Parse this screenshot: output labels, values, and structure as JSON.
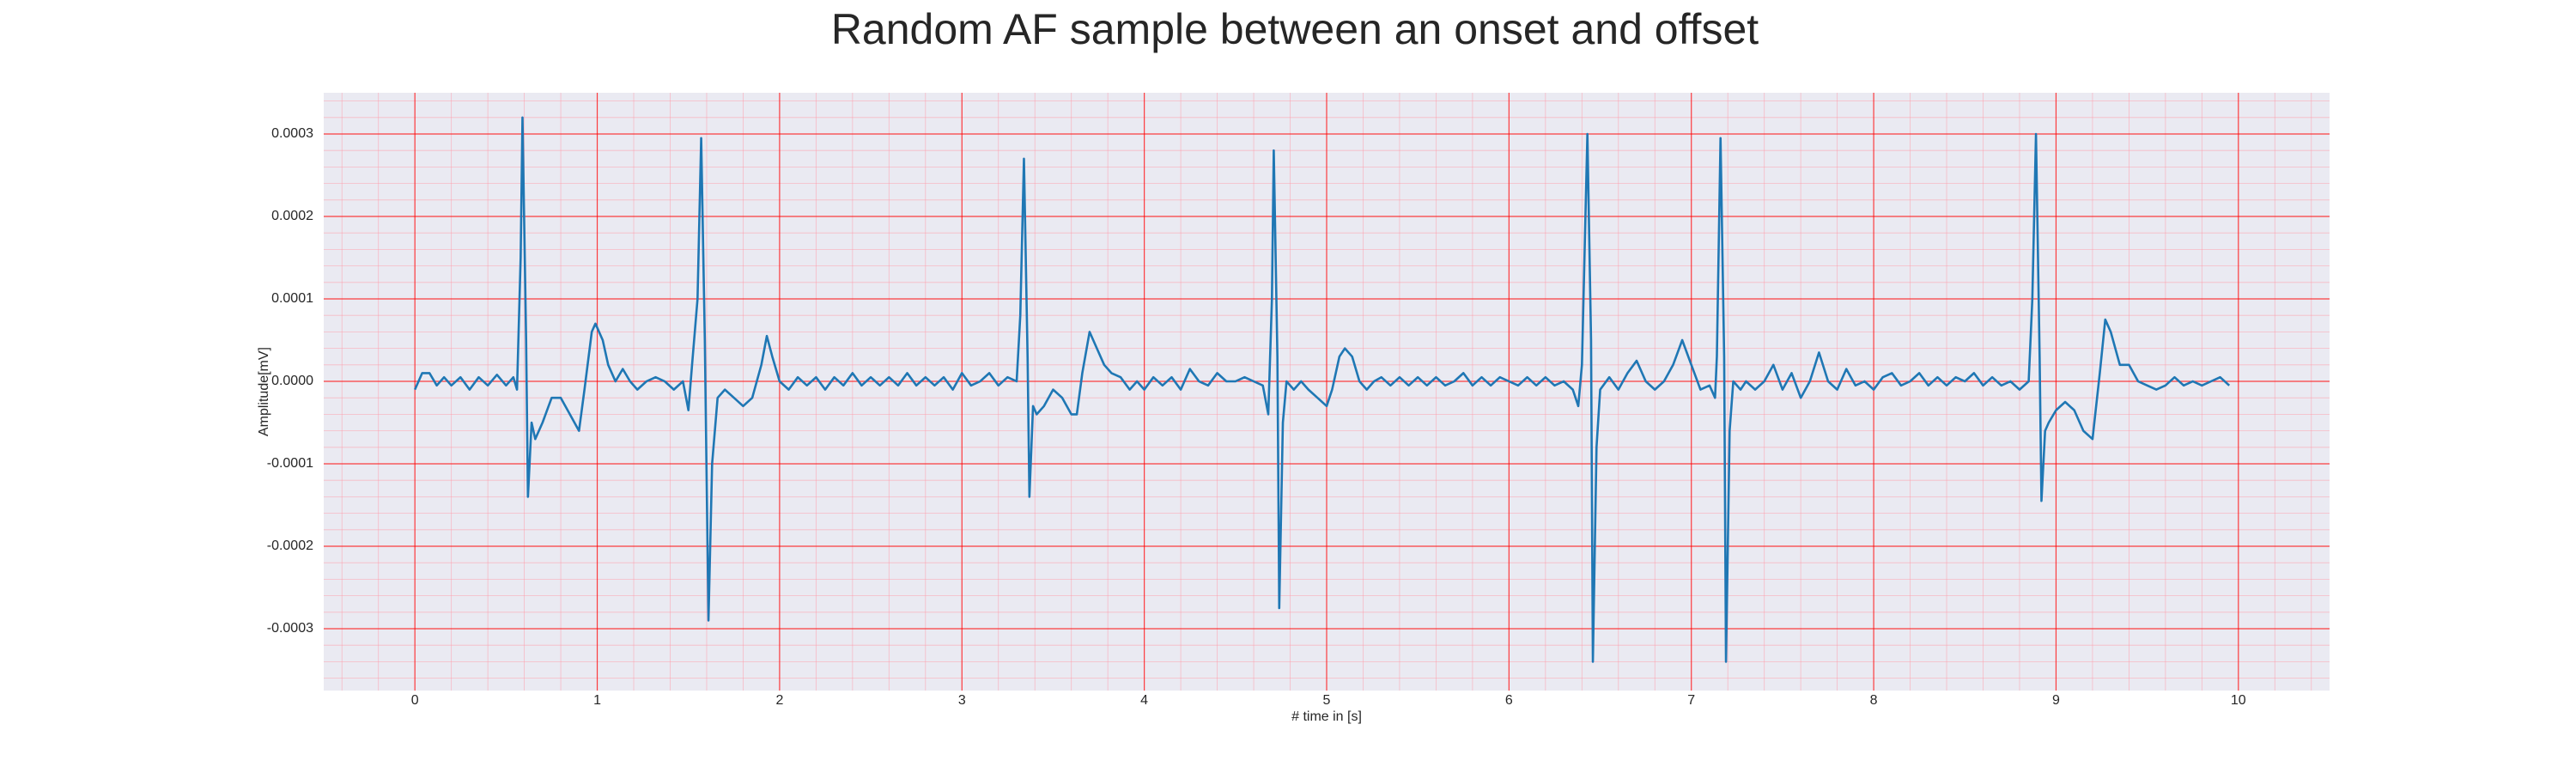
{
  "chart_data": {
    "type": "line",
    "title": "Random AF sample between an onset and offset",
    "xlabel": "# time in [s]",
    "ylabel": "Amplitude[mV]",
    "color": "#1f77b4",
    "grid": true,
    "minor_grid": true,
    "xlim": [
      -0.5,
      10.5
    ],
    "ylim": [
      -0.000375,
      0.00035
    ],
    "xticks": [
      0,
      1,
      2,
      3,
      4,
      5,
      6,
      7,
      8,
      9,
      10
    ],
    "yticks": [
      -0.0003,
      -0.0002,
      -0.0001,
      {
        "value": 0,
        "label": "0.0000"
      },
      0.0001,
      0.0002,
      0.0003
    ],
    "x": [
      0,
      0.04,
      0.08,
      0.12,
      0.16,
      0.2,
      0.25,
      0.3,
      0.35,
      0.4,
      0.45,
      0.5,
      0.54,
      0.56,
      0.58,
      0.59,
      0.61,
      0.62,
      0.64,
      0.66,
      0.7,
      0.75,
      0.8,
      0.85,
      0.9,
      0.93,
      0.97,
      0.99,
      1.03,
      1.06,
      1.1,
      1.14,
      1.18,
      1.22,
      1.27,
      1.32,
      1.37,
      1.42,
      1.47,
      1.5,
      1.52,
      1.55,
      1.57,
      1.59,
      1.61,
      1.63,
      1.66,
      1.7,
      1.75,
      1.8,
      1.85,
      1.9,
      1.93,
      1.96,
      2.0,
      2.05,
      2.1,
      2.15,
      2.2,
      2.25,
      2.3,
      2.35,
      2.4,
      2.45,
      2.5,
      2.55,
      2.6,
      2.65,
      2.7,
      2.75,
      2.8,
      2.85,
      2.9,
      2.95,
      3.0,
      3.05,
      3.1,
      3.15,
      3.2,
      3.25,
      3.3,
      3.32,
      3.34,
      3.36,
      3.37,
      3.39,
      3.41,
      3.45,
      3.5,
      3.55,
      3.6,
      3.63,
      3.66,
      3.7,
      3.74,
      3.78,
      3.82,
      3.87,
      3.92,
      3.96,
      4.0,
      4.05,
      4.1,
      4.15,
      4.2,
      4.25,
      4.3,
      4.35,
      4.4,
      4.45,
      4.5,
      4.55,
      4.6,
      4.65,
      4.68,
      4.7,
      4.71,
      4.73,
      4.74,
      4.76,
      4.78,
      4.82,
      4.86,
      4.9,
      4.95,
      5.0,
      5.03,
      5.07,
      5.1,
      5.14,
      5.18,
      5.22,
      5.26,
      5.3,
      5.35,
      5.4,
      5.45,
      5.5,
      5.55,
      5.6,
      5.65,
      5.7,
      5.75,
      5.8,
      5.85,
      5.9,
      5.95,
      6.0,
      6.05,
      6.1,
      6.15,
      6.2,
      6.25,
      6.3,
      6.35,
      6.38,
      6.4,
      6.43,
      6.45,
      6.46,
      6.48,
      6.5,
      6.55,
      6.6,
      6.65,
      6.7,
      6.75,
      6.8,
      6.85,
      6.9,
      6.95,
      7.0,
      7.05,
      7.1,
      7.13,
      7.14,
      7.16,
      7.18,
      7.19,
      7.21,
      7.23,
      7.27,
      7.3,
      7.35,
      7.4,
      7.45,
      7.5,
      7.55,
      7.6,
      7.65,
      7.7,
      7.75,
      7.8,
      7.85,
      7.9,
      7.95,
      8.0,
      8.05,
      8.1,
      8.15,
      8.2,
      8.25,
      8.3,
      8.35,
      8.4,
      8.45,
      8.5,
      8.55,
      8.6,
      8.65,
      8.7,
      8.75,
      8.8,
      8.85,
      8.87,
      8.89,
      8.91,
      8.92,
      8.94,
      8.96,
      9.0,
      9.05,
      9.1,
      9.15,
      9.2,
      9.24,
      9.27,
      9.3,
      9.35,
      9.4,
      9.45,
      9.5,
      9.55,
      9.6,
      9.65,
      9.7,
      9.75,
      9.8,
      9.85,
      9.9,
      9.95
    ],
    "values": [
      -1e-05,
      1e-05,
      1e-05,
      -5e-06,
      5e-06,
      -5e-06,
      5e-06,
      -1e-05,
      5e-06,
      -5e-06,
      8e-06,
      -5e-06,
      5e-06,
      -1e-05,
      0.00015,
      0.00032,
      5e-05,
      -0.00014,
      -5e-05,
      -7e-05,
      -5e-05,
      -2e-05,
      -2e-05,
      -4e-05,
      -6e-05,
      -1e-05,
      6e-05,
      7e-05,
      5e-05,
      2e-05,
      0,
      1.5e-05,
      0,
      -1e-05,
      0,
      5e-06,
      0,
      -1e-05,
      0,
      -3.5e-05,
      2e-05,
      0.0001,
      0.000295,
      5e-05,
      -0.00029,
      -0.0001,
      -2e-05,
      -1e-05,
      -2e-05,
      -3e-05,
      -2e-05,
      2e-05,
      5.5e-05,
      3e-05,
      0,
      -1e-05,
      5e-06,
      -5e-06,
      5e-06,
      -1e-05,
      5e-06,
      -5e-06,
      1e-05,
      -5e-06,
      5e-06,
      -5e-06,
      5e-06,
      -5e-06,
      1e-05,
      -5e-06,
      5e-06,
      -5e-06,
      5e-06,
      -1e-05,
      1e-05,
      -5e-06,
      0,
      1e-05,
      -5e-06,
      5e-06,
      0,
      8e-05,
      0.00027,
      3e-05,
      -0.00014,
      -3e-05,
      -4e-05,
      -3e-05,
      -1e-05,
      -2e-05,
      -4e-05,
      -4e-05,
      1e-05,
      6e-05,
      4e-05,
      2e-05,
      1e-05,
      5e-06,
      -1e-05,
      0,
      -1e-05,
      5e-06,
      -5e-06,
      5e-06,
      -1e-05,
      1.5e-05,
      0,
      -5e-06,
      1e-05,
      0,
      0,
      5e-06,
      0,
      -5e-06,
      -4e-05,
      0.0001,
      0.00028,
      3e-05,
      -0.000275,
      -5e-05,
      0,
      -1e-05,
      0,
      -1e-05,
      -2e-05,
      -3e-05,
      -1e-05,
      3e-05,
      4e-05,
      3e-05,
      0,
      -1e-05,
      0,
      5e-06,
      -5e-06,
      5e-06,
      -5e-06,
      5e-06,
      -5e-06,
      5e-06,
      -5e-06,
      0,
      1e-05,
      -5e-06,
      5e-06,
      -5e-06,
      5e-06,
      0,
      -5e-06,
      5e-06,
      -5e-06,
      5e-06,
      -5e-06,
      0,
      -1e-05,
      -3e-05,
      2e-05,
      0.0003,
      5e-05,
      -0.00034,
      -8e-05,
      -1e-05,
      5e-06,
      -1e-05,
      1e-05,
      2.5e-05,
      0,
      -1e-05,
      0,
      2e-05,
      5e-05,
      2e-05,
      -1e-05,
      -5e-06,
      -2e-05,
      3e-05,
      0.000295,
      3e-05,
      -0.00034,
      -6e-05,
      0,
      -1e-05,
      0,
      -1e-05,
      0,
      2e-05,
      -1e-05,
      1e-05,
      -2e-05,
      0,
      3.5e-05,
      0,
      -1e-05,
      1.5e-05,
      -5e-06,
      0,
      -1e-05,
      5e-06,
      1e-05,
      -5e-06,
      0,
      1e-05,
      -5e-06,
      5e-06,
      -5e-06,
      5e-06,
      0,
      1e-05,
      -5e-06,
      5e-06,
      -5e-06,
      0,
      -1e-05,
      0,
      0.0001,
      0.0003,
      3e-05,
      -0.000145,
      -6e-05,
      -5e-05,
      -3.5e-05,
      -2.5e-05,
      -3.5e-05,
      -6e-05,
      -7e-05,
      1e-05,
      7.5e-05,
      6e-05,
      2e-05,
      2e-05,
      0,
      -5e-06,
      -1e-05,
      -5e-06,
      5e-06,
      -5e-06,
      0,
      -5e-06,
      0,
      5e-06,
      -5e-06
    ]
  }
}
